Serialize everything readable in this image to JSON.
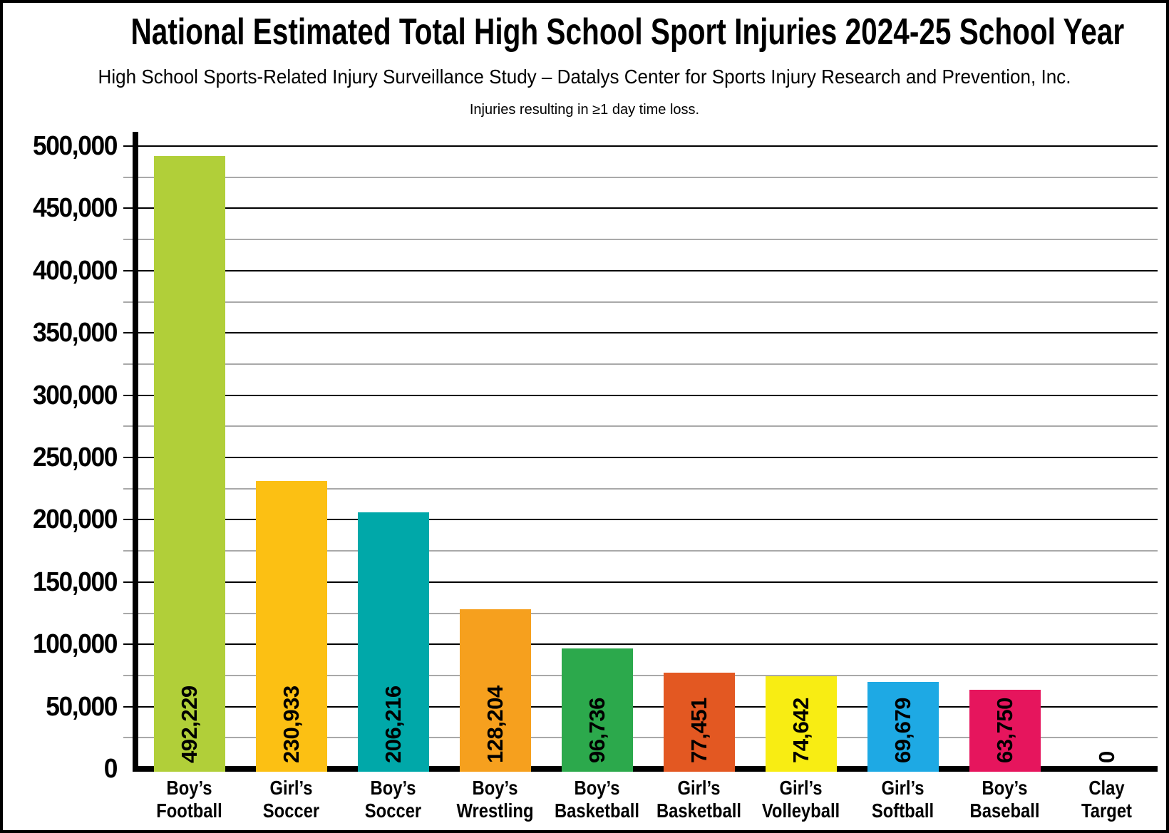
{
  "header": {
    "title": "National Estimated Total High School Sport Injuries 2024-25 School Year",
    "subtitle": "High School Sports-Related Injury Surveillance Study – Datalys Center for Sports Injury Research and Prevention, Inc.",
    "note": "Injuries resulting in ≥1 day time loss."
  },
  "chart_data": {
    "type": "bar",
    "title": "National Estimated Total High School Sport Injuries 2024-25 School Year",
    "subtitle": "High School Sports-Related Injury Surveillance Study – Datalys Center for Sports Injury Research and Prevention, Inc.",
    "annotation": "Injuries resulting in ≥1 day time loss.",
    "categories": [
      "Boy’s Football",
      "Girl’s Soccer",
      "Boy’s Soccer",
      "Boy’s Wrestling",
      "Boy’s Basketball",
      "Girl’s Basketball",
      "Girl’s Volleyball",
      "Girl’s Softball",
      "Boy’s Baseball",
      "Clay Target"
    ],
    "values": [
      492229,
      230933,
      206216,
      128204,
      96736,
      77451,
      74642,
      69679,
      63750,
      0
    ],
    "value_labels": [
      "492,229",
      "230,933",
      "206,216",
      "128,204",
      "96,736",
      "77,451",
      "74,642",
      "69,679",
      "63,750",
      "0"
    ],
    "bar_colors": [
      "#b1cf39",
      "#fcc013",
      "#00a8a9",
      "#f6a01e",
      "#2ca94c",
      "#e35822",
      "#f8ed13",
      "#1ea9e4",
      "#e6155d",
      null
    ],
    "xlabel": "",
    "ylabel": "",
    "ylim": [
      0,
      500000
    ],
    "y_major_interval": 50000,
    "y_minor_interval": 25000,
    "yticks": [
      "0",
      "50,000",
      "100,000",
      "150,000",
      "200,000",
      "250,000",
      "300,000",
      "350,000",
      "400,000",
      "450,000",
      "500,000"
    ],
    "grid": "horizontal, major black + minor gray",
    "grid_major_color": "#000000",
    "grid_minor_color": "#a9a9a9",
    "axis_color": "#000000",
    "value_label_rotation_deg": -90,
    "legend": "none",
    "background": "#ffffff"
  }
}
